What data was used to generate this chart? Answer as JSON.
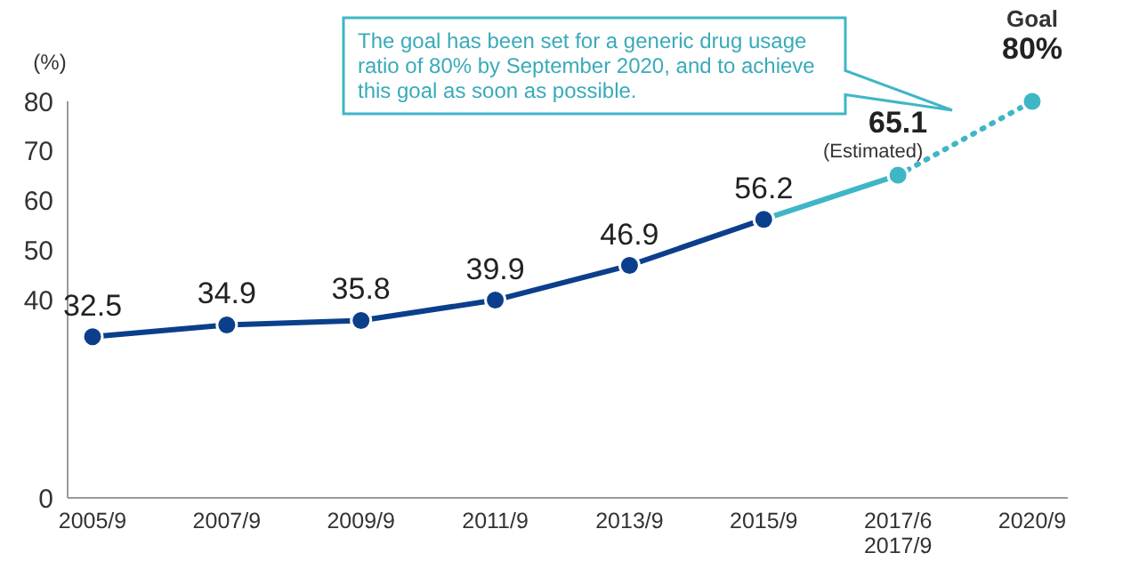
{
  "chart_data": {
    "type": "line",
    "ylabel": "(%)",
    "categories": [
      "2005/9",
      "2007/9",
      "2009/9",
      "2011/9",
      "2013/9",
      "2015/9",
      "2017/6 2017/9",
      "2020/9"
    ],
    "series": [
      {
        "color": "#0b3f8c",
        "values": [
          32.5,
          34.9,
          35.8,
          39.9,
          46.9,
          56.2,
          null,
          null
        ],
        "value_labels": [
          "32.5",
          "34.9",
          "35.8",
          "39.9",
          "46.9",
          "56.2",
          null,
          null
        ],
        "line_style": "solid"
      },
      {
        "color": "#3fb6c6",
        "values": [
          null,
          null,
          null,
          null,
          null,
          56.2,
          65.1,
          null
        ],
        "value_labels": [
          null,
          null,
          null,
          null,
          null,
          null,
          "65.1",
          null
        ],
        "line_style": "solid"
      },
      {
        "color": "#3fb6c6",
        "values": [
          null,
          null,
          null,
          null,
          null,
          null,
          65.1,
          80
        ],
        "value_labels": [
          null,
          null,
          null,
          null,
          null,
          null,
          null,
          "80%"
        ],
        "line_style": "dotted"
      }
    ],
    "ylim": [
      0,
      80
    ],
    "yticks": [
      0,
      40,
      50,
      60,
      70,
      80
    ],
    "marker": "circle",
    "annotations": [
      {
        "text": "(Estimated)",
        "x": "2017/6 2017/9",
        "y": 65.1
      },
      {
        "text": "Goal",
        "x": "2020/9",
        "y": 80
      },
      "The goal has been set for a generic drug usage ratio of 80% by September 2020, and to achieve this goal as soon as possible."
    ]
  }
}
